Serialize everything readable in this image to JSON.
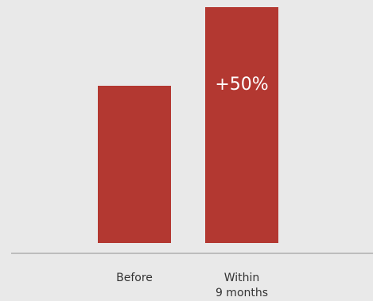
{
  "colors": {
    "background": "#e9e9e9",
    "bar": "#b33831",
    "axis": "#bdbdbd",
    "tick_text": "#333333",
    "data_label_text": "#ffffff"
  },
  "chart_data": {
    "type": "bar",
    "title": "",
    "xlabel": "",
    "ylabel": "",
    "categories": [
      [
        "Before"
      ],
      [
        "Within",
        "9 months"
      ]
    ],
    "values": [
      100,
      150
    ],
    "data_labels": [
      "",
      "+50%"
    ],
    "ylim": [
      0,
      150
    ],
    "grid": false,
    "legend": "none"
  }
}
